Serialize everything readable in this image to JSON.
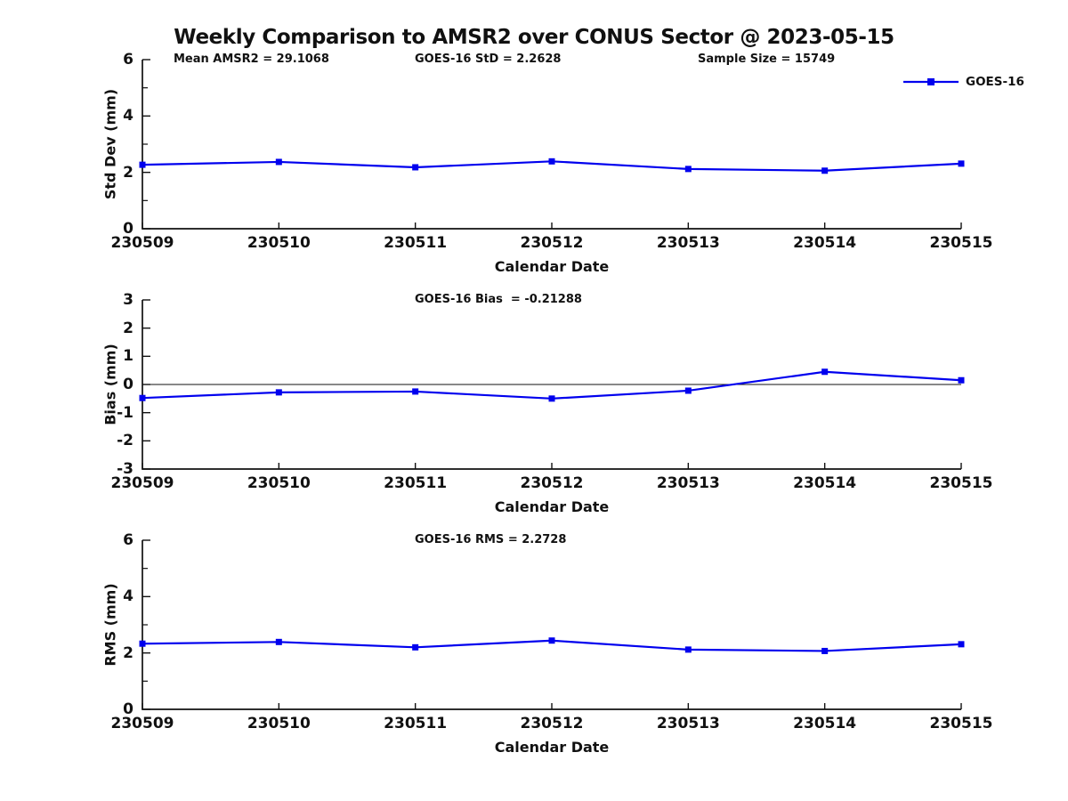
{
  "title": "Weekly Comparison to AMSR2 over CONUS Sector @ 2023-05-15",
  "legend": {
    "label": "GOES-16",
    "line_color": "#0000EE"
  },
  "colors": {
    "series": "#0000EE",
    "axis": "#111111",
    "background": "#ffffff"
  },
  "chart_data": [
    {
      "type": "line",
      "title": "Std Dev subplot",
      "categories": [
        "230509",
        "230510",
        "230511",
        "230512",
        "230513",
        "230514",
        "230515"
      ],
      "series": [
        {
          "name": "GOES-16",
          "values": [
            2.27,
            2.37,
            2.18,
            2.39,
            2.12,
            2.06,
            2.31
          ]
        }
      ],
      "ylabel": "Std Dev (mm)",
      "xlabel": "Calendar Date",
      "ylim": [
        0,
        6
      ],
      "yticks": [
        0,
        2,
        4,
        6
      ],
      "minor_yticks": [
        1,
        3,
        5
      ],
      "zero_line": false,
      "grid": false,
      "legend_position": "top-right-outside",
      "marker": "square",
      "annotations": [
        {
          "text": "Mean AMSR2 = 29.1068"
        },
        {
          "text": "GOES-16 StD = 2.2628"
        },
        {
          "text": "Sample Size = 15749"
        }
      ]
    },
    {
      "type": "line",
      "title": "Bias subplot",
      "categories": [
        "230509",
        "230510",
        "230511",
        "230512",
        "230513",
        "230514",
        "230515"
      ],
      "series": [
        {
          "name": "GOES-16",
          "values": [
            -0.48,
            -0.28,
            -0.25,
            -0.5,
            -0.22,
            0.45,
            0.15
          ]
        }
      ],
      "ylabel": "Bias (mm)",
      "xlabel": "Calendar Date",
      "ylim": [
        -3,
        3
      ],
      "yticks": [
        -3,
        -2,
        -1,
        0,
        1,
        2,
        3
      ],
      "minor_yticks": [],
      "zero_line": true,
      "grid": false,
      "marker": "square",
      "annotations": [
        {
          "text": "GOES-16 Bias  = -0.21288"
        }
      ]
    },
    {
      "type": "line",
      "title": "RMS subplot",
      "categories": [
        "230509",
        "230510",
        "230511",
        "230512",
        "230513",
        "230514",
        "230515"
      ],
      "series": [
        {
          "name": "GOES-16",
          "values": [
            2.33,
            2.39,
            2.2,
            2.44,
            2.12,
            2.07,
            2.31
          ]
        }
      ],
      "ylabel": "RMS (mm)",
      "xlabel": "Calendar Date",
      "ylim": [
        0,
        6
      ],
      "yticks": [
        0,
        2,
        4,
        6
      ],
      "minor_yticks": [
        1,
        3,
        5
      ],
      "zero_line": false,
      "grid": false,
      "marker": "square",
      "annotations": [
        {
          "text": "GOES-16 RMS = 2.2728"
        }
      ]
    }
  ]
}
